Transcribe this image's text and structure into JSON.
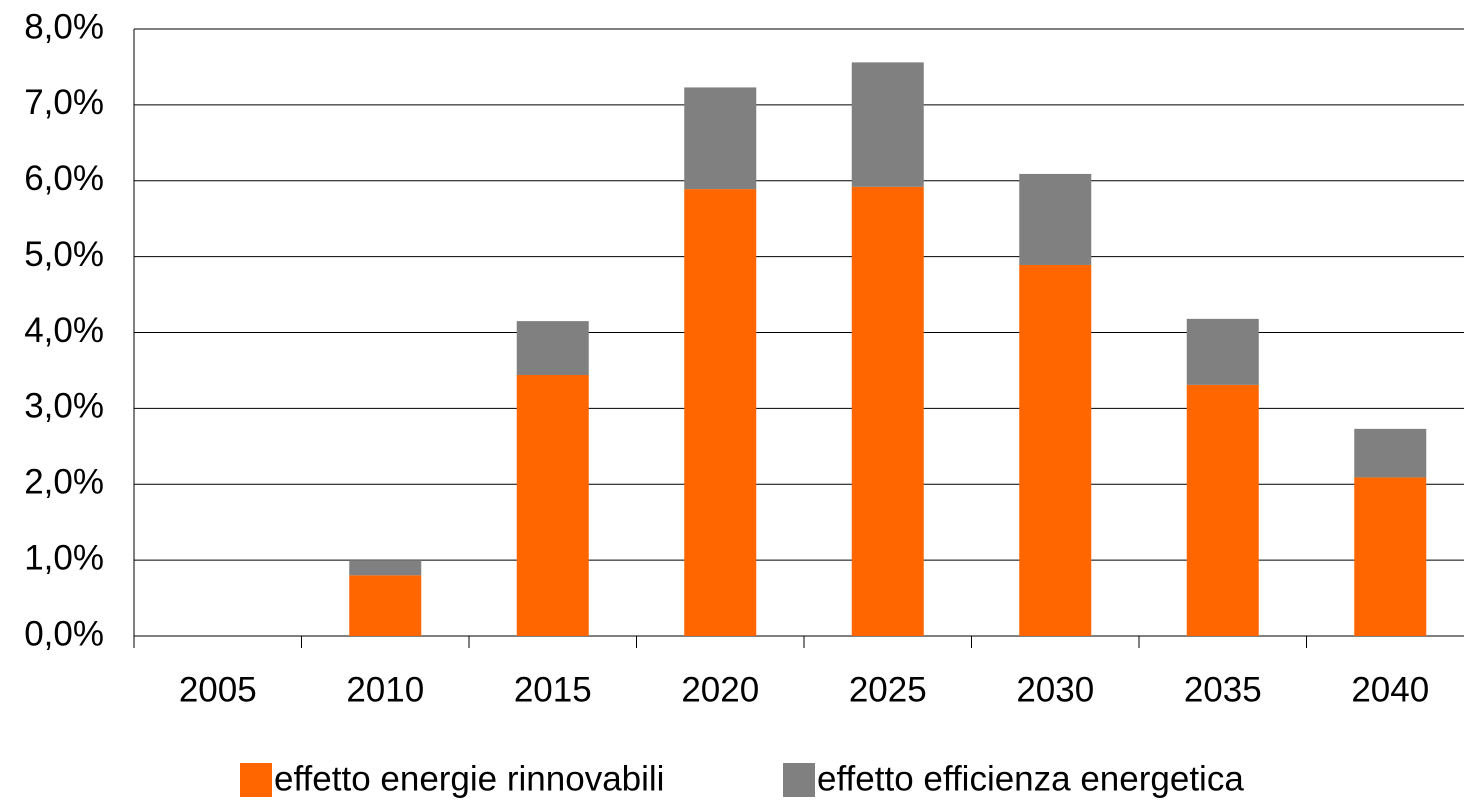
{
  "chart_data": {
    "type": "bar",
    "stacked": true,
    "categories": [
      "2005",
      "2010",
      "2015",
      "2020",
      "2025",
      "2030",
      "2035",
      "2040"
    ],
    "series": [
      {
        "name": "effetto energie rinnovabili",
        "color": "#ff6600",
        "values": [
          0,
          0.8,
          3.44,
          5.89,
          5.92,
          4.89,
          3.31,
          2.09
        ]
      },
      {
        "name": "effetto efficienza energetica",
        "color": "#808080",
        "values": [
          0,
          0.2,
          0.71,
          1.34,
          1.64,
          1.2,
          0.87,
          0.64
        ]
      }
    ],
    "ylim": [
      0,
      8
    ],
    "yticks": [
      {
        "value": 0,
        "label": "0,0%"
      },
      {
        "value": 1,
        "label": "1,0%"
      },
      {
        "value": 2,
        "label": "2,0%"
      },
      {
        "value": 3,
        "label": "3,0%"
      },
      {
        "value": 4,
        "label": "4,0%"
      },
      {
        "value": 5,
        "label": "5,0%"
      },
      {
        "value": 6,
        "label": "6,0%"
      },
      {
        "value": 7,
        "label": "7,0%"
      },
      {
        "value": 8,
        "label": "8,0%"
      }
    ],
    "grid": true,
    "legend": "bottom"
  }
}
